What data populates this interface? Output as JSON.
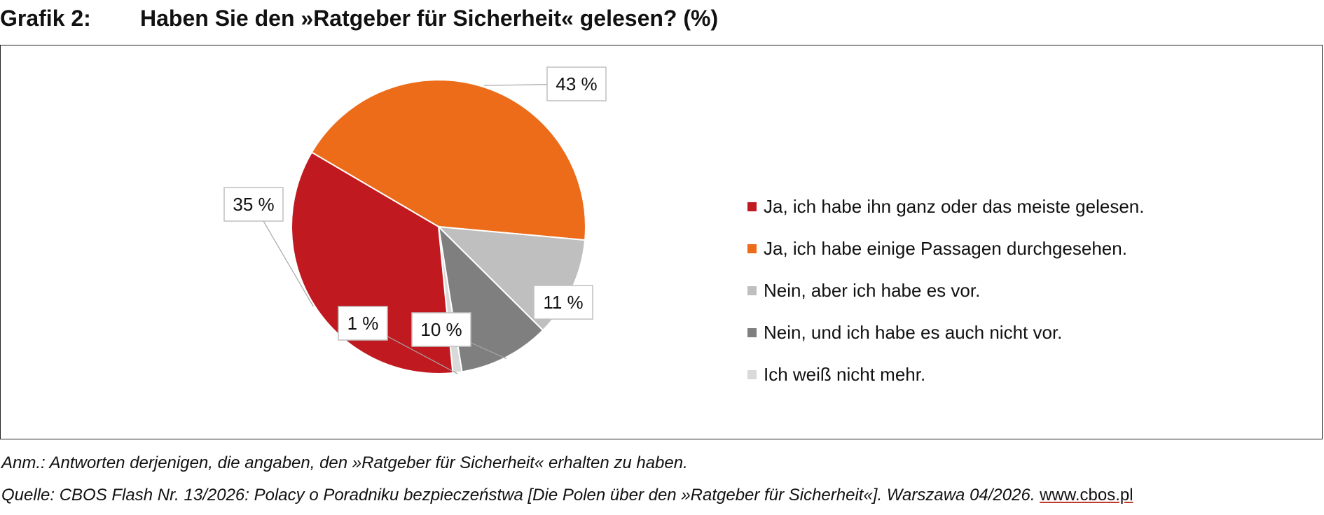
{
  "header": {
    "figure_label": "Grafik 2:",
    "title": "Haben Sie den »Ratgeber für Sicherheit« gelesen? (%)"
  },
  "chart_data": {
    "type": "pie",
    "title": "Haben Sie den »Ratgeber für Sicherheit« gelesen? (%)",
    "unit": "%",
    "legend_position": "right",
    "slices": [
      {
        "label": "Ja, ich habe ihn ganz oder das meiste gelesen.",
        "value": 35,
        "display": "35 %",
        "color": "#c0191f"
      },
      {
        "label": "Ja, ich habe einige Passagen durchgesehen.",
        "value": 43,
        "display": "43 %",
        "color": "#ec6c1a"
      },
      {
        "label": "Nein, aber ich habe es vor.",
        "value": 11,
        "display": "11 %",
        "color": "#bfbfbf"
      },
      {
        "label": "Nein, und ich habe es auch nicht vor.",
        "value": 10,
        "display": "10 %",
        "color": "#7f7f7f"
      },
      {
        "label": "Ich weiß nicht mehr.",
        "value": 1,
        "display": "1 %",
        "color": "#d9d9d9"
      }
    ]
  },
  "footer": {
    "note": "Anm.: Antworten derjenigen, die angaben, den »Ratgeber für Sicherheit« erhalten zu haben.",
    "source": "Quelle: CBOS Flash Nr. 13/2026: Polacy o Poradniku bezpieczeństwa [Die Polen über den »Ratgeber für Sicherheit«]. Warszawa 04/2026. ",
    "link": "www.cbos.pl"
  }
}
